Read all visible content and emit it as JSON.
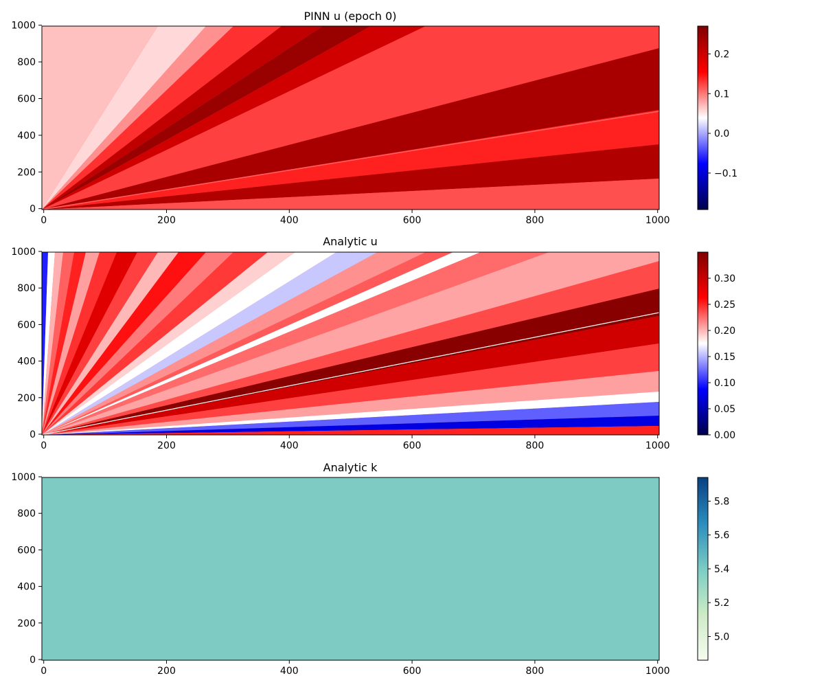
{
  "chart_data": [
    {
      "type": "heatmap",
      "title": "PINN u (epoch 0)",
      "xlim": [
        0,
        1000
      ],
      "ylim": [
        0,
        1000
      ],
      "xticks": [
        0,
        200,
        400,
        600,
        800,
        1000
      ],
      "yticks": [
        0,
        200,
        400,
        600,
        800,
        1000
      ],
      "colormap": "seismic",
      "colorbar": {
        "range": [
          -0.2,
          0.27
        ],
        "ticks": [
          -0.1,
          0.0,
          0.1,
          0.2
        ],
        "tick_labels": [
          "−0.1",
          "0.0",
          "0.1",
          "0.2"
        ]
      }
    },
    {
      "type": "heatmap",
      "title": "Analytic u",
      "xlim": [
        0,
        1000
      ],
      "ylim": [
        0,
        1000
      ],
      "xticks": [
        0,
        200,
        400,
        600,
        800,
        1000
      ],
      "yticks": [
        0,
        200,
        400,
        600,
        800,
        1000
      ],
      "colormap": "seismic",
      "colorbar": {
        "range": [
          0.0,
          0.35
        ],
        "ticks": [
          0.0,
          0.05,
          0.1,
          0.15,
          0.2,
          0.25,
          0.3
        ],
        "tick_labels": [
          "0.00",
          "0.05",
          "0.10",
          "0.15",
          "0.20",
          "0.25",
          "0.30"
        ]
      }
    },
    {
      "type": "heatmap",
      "title": "Analytic k",
      "xlim": [
        0,
        1000
      ],
      "ylim": [
        0,
        1000
      ],
      "xticks": [
        0,
        200,
        400,
        600,
        800,
        1000
      ],
      "yticks": [
        0,
        200,
        400,
        600,
        800,
        1000
      ],
      "colormap": "GnBu",
      "uniform_value": 5.4,
      "fill_color": "#7ecbc3",
      "colorbar": {
        "range": [
          4.86,
          5.94
        ],
        "ticks": [
          5.0,
          5.2,
          5.4,
          5.6,
          5.8
        ],
        "tick_labels": [
          "5.0",
          "5.2",
          "5.4",
          "5.6",
          "5.8"
        ]
      }
    }
  ]
}
